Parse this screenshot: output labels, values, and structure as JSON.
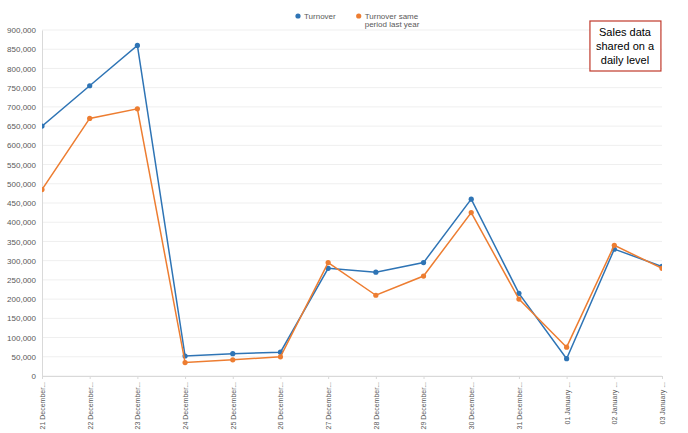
{
  "chart_data": {
    "type": "line",
    "categories": [
      "21 December...",
      "22 December...",
      "23 December...",
      "24 December...",
      "25 December...",
      "26 December...",
      "27 December...",
      "28 December...",
      "29 December...",
      "30 December...",
      "31 December...",
      "01 January ...",
      "02 January ...",
      "03 January ..."
    ],
    "series": [
      {
        "name": "Turnover",
        "color": "#2e74b5",
        "marker": "circle",
        "values": [
          650000,
          755000,
          860000,
          52000,
          58000,
          62000,
          280000,
          270000,
          295000,
          460000,
          215000,
          45000,
          330000,
          285000
        ]
      },
      {
        "name": "Turnover same period last year",
        "color": "#ed7d31",
        "marker": "circle",
        "values": [
          485000,
          670000,
          695000,
          35000,
          42000,
          50000,
          295000,
          210000,
          260000,
          425000,
          200000,
          75000,
          340000,
          280000
        ]
      }
    ],
    "ylim": [
      0,
      900000
    ],
    "yticks": [
      0,
      {
        "value": 50000,
        "label": "50,000"
      },
      {
        "value": 100000,
        "label": "100,000"
      },
      {
        "value": 150000,
        "label": "150,000"
      },
      {
        "value": 200000,
        "label": "200,000"
      },
      {
        "value": 250000,
        "label": "250,000"
      },
      {
        "value": 300000,
        "label": "300,000"
      },
      {
        "value": 350000,
        "label": "350,000"
      },
      {
        "value": 400000,
        "label": "400,000"
      },
      {
        "value": 450000,
        "label": "450,000"
      },
      {
        "value": 500000,
        "label": "500,000"
      },
      {
        "value": 550000,
        "label": "550,000"
      },
      {
        "value": 600000,
        "label": "600,000"
      },
      {
        "value": 650000,
        "label": "650,000"
      },
      {
        "value": 700000,
        "label": "700,000"
      },
      {
        "value": 750000,
        "label": "750,000"
      },
      {
        "value": 800000,
        "label": "800,000"
      },
      {
        "value": 850000,
        "label": "850,000"
      },
      {
        "value": 900000,
        "label": "900,000"
      }
    ],
    "grid": true,
    "legend": "top",
    "annotations": [
      "Sales data shared on a daily level"
    ]
  }
}
